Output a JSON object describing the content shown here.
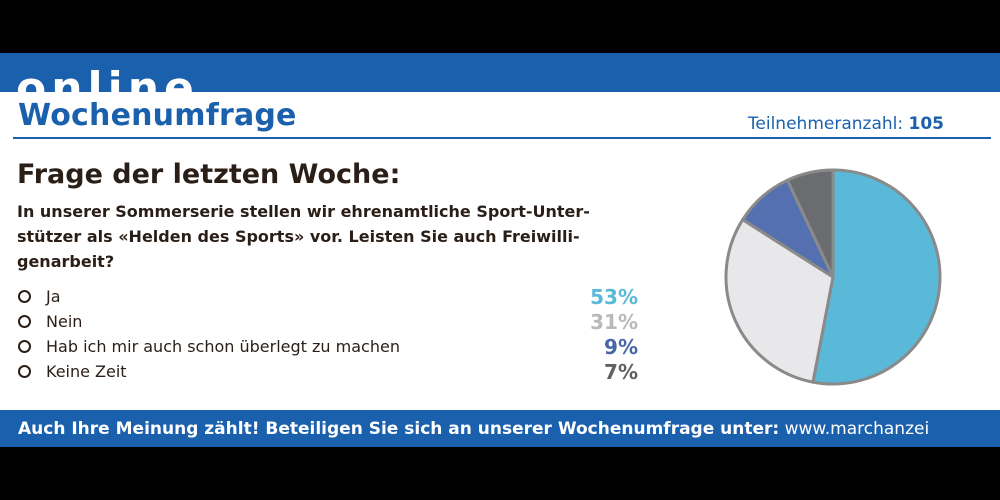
{
  "header": {
    "brand": "online",
    "title": "Wochenumfrage",
    "participants_label": "Teilnehmeranzahl:",
    "participants_count": "105"
  },
  "question": {
    "heading": "Frage der letzten Woche:",
    "text": "In unserer Sommerserie stellen wir ehrenamtliche Sport-Unter-\nstützer als «Helden des Sports» vor. Leisten Sie auch Freiwilli-\ngenarbeit?"
  },
  "options": [
    {
      "label": "Ja",
      "percent_text": "53%",
      "color": "#5ab8d8"
    },
    {
      "label": "Nein",
      "percent_text": "31%",
      "color": "#b9b9b9"
    },
    {
      "label": "Hab ich mir auch schon überlegt zu machen",
      "percent_text": "9%",
      "color": "#4967a6"
    },
    {
      "label": "Keine Zeit",
      "percent_text": "7%",
      "color": "#5e6062"
    }
  ],
  "chart_data": {
    "type": "pie",
    "title": "",
    "categories": [
      "Ja",
      "Nein",
      "Hab ich mir auch schon überlegt zu machen",
      "Keine Zeit"
    ],
    "values": [
      53,
      31,
      9,
      7
    ],
    "unit": "%",
    "colors": [
      "#5ab8d8",
      "#e8e8eb",
      "#5470b0",
      "#6a6c6f"
    ],
    "outline_color": "#8a8a8a",
    "start_angle": "12 o'clock",
    "direction": "clockwise",
    "legend": "none"
  },
  "footer": {
    "text_bold": "Auch Ihre Meinung zählt! Beteiligen Sie sich an unserer Wochenumfrage unter:",
    "url": "www.marchanzei"
  },
  "colors": {
    "brand_blue": "#1b60ad",
    "text_dark": "#2a1e17",
    "background": "#ffffff",
    "outer": "#000000"
  }
}
